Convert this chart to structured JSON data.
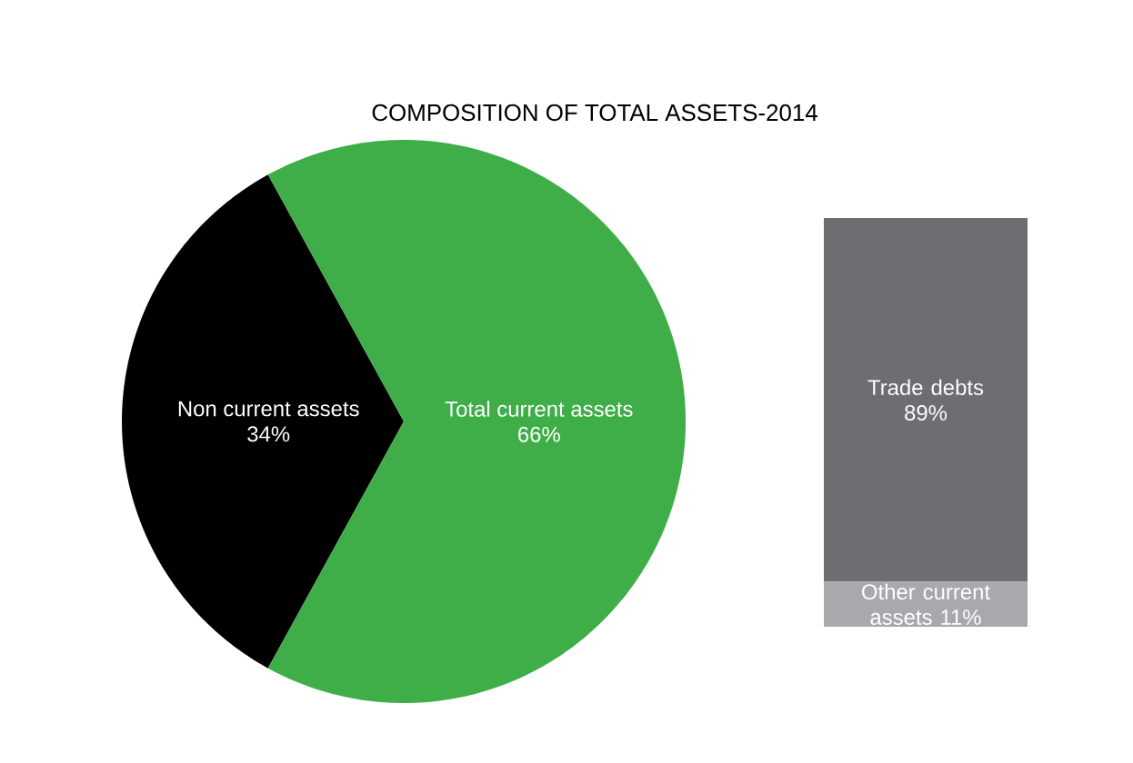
{
  "chart_data": [
    {
      "type": "pie",
      "title": "COMPOSITION OF TOTAL ASSETS-2014",
      "categories": [
        "Non current assets",
        "Total current assets"
      ],
      "values": [
        34,
        66
      ],
      "colors": [
        "#000000",
        "#3fae49"
      ],
      "value_labels": [
        "34%",
        "66%"
      ]
    },
    {
      "type": "bar",
      "stacked": true,
      "categories": [
        null
      ],
      "series": [
        {
          "name": "Other current assets",
          "color": "#a7a9ac",
          "values": [
            11
          ],
          "value_labels": [
            "11%"
          ]
        },
        {
          "name": "Trade debts",
          "color": "#6d6e71",
          "values": [
            89
          ],
          "value_labels": [
            "89%"
          ]
        }
      ]
    }
  ]
}
